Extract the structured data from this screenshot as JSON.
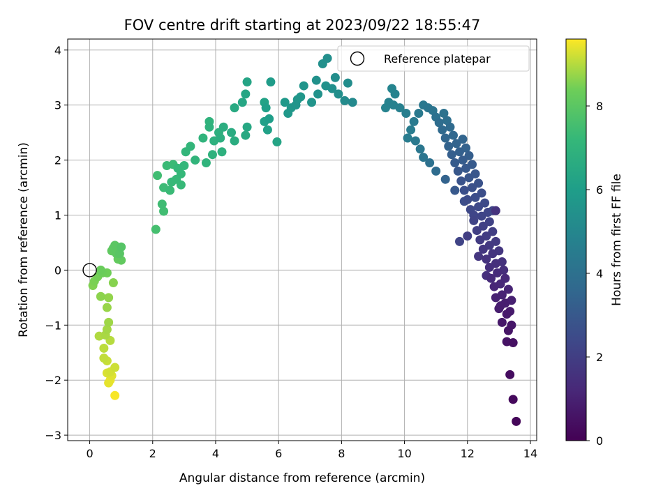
{
  "chart_data": {
    "type": "scatter",
    "title": "FOV centre drift starting at 2023/09/22 18:55:47",
    "xlabel": "Angular distance from reference (arcmin)",
    "ylabel": "Rotation from reference (arcmin)",
    "xlim": [
      -0.7,
      14.2
    ],
    "ylim": [
      -3.1,
      4.2
    ],
    "xticks": [
      "0",
      "2",
      "4",
      "6",
      "8",
      "10",
      "12",
      "14"
    ],
    "yticks": [
      "−3",
      "−2",
      "−1",
      "0",
      "1",
      "2",
      "3",
      "4"
    ],
    "grid": true,
    "legend": {
      "position": "top-right",
      "entries": [
        "Reference platepar"
      ]
    },
    "reference_point": {
      "x": 0,
      "y": 0,
      "label": "Reference platepar"
    },
    "colorbar": {
      "label": "Hours from first FF file",
      "colormap": "viridis",
      "range": [
        0,
        9.6
      ],
      "ticks": [
        "0",
        "2",
        "4",
        "6",
        "8"
      ]
    },
    "series": [
      {
        "color_value": "time_hours",
        "points": [
          {
            "x": 13.55,
            "y": -2.75,
            "t": 0.15
          },
          {
            "x": 13.45,
            "y": -2.35,
            "t": 0.25
          },
          {
            "x": 13.35,
            "y": -1.9,
            "t": 0.35
          },
          {
            "x": 13.45,
            "y": -1.32,
            "t": 0.5
          },
          {
            "x": 13.25,
            "y": -1.3,
            "t": 0.55
          },
          {
            "x": 13.3,
            "y": -1.1,
            "t": 0.6
          },
          {
            "x": 13.4,
            "y": -1.0,
            "t": 0.65
          },
          {
            "x": 13.1,
            "y": -0.95,
            "t": 0.7
          },
          {
            "x": 13.25,
            "y": -0.8,
            "t": 0.75
          },
          {
            "x": 13.35,
            "y": -0.75,
            "t": 0.8
          },
          {
            "x": 13.0,
            "y": -0.7,
            "t": 0.85
          },
          {
            "x": 13.2,
            "y": -0.6,
            "t": 0.9
          },
          {
            "x": 13.4,
            "y": -0.55,
            "t": 0.95
          },
          {
            "x": 12.9,
            "y": -0.5,
            "t": 1.0
          },
          {
            "x": 13.1,
            "y": -0.45,
            "t": 1.05
          },
          {
            "x": 13.3,
            "y": -0.35,
            "t": 1.1
          },
          {
            "x": 12.85,
            "y": -0.3,
            "t": 1.15
          },
          {
            "x": 13.05,
            "y": -0.25,
            "t": 1.2
          },
          {
            "x": 13.2,
            "y": -0.15,
            "t": 1.25
          },
          {
            "x": 12.75,
            "y": -0.15,
            "t": 1.3
          },
          {
            "x": 12.95,
            "y": -0.05,
            "t": 1.35
          },
          {
            "x": 13.15,
            "y": 0.0,
            "t": 1.4
          },
          {
            "x": 12.7,
            "y": 0.05,
            "t": 1.45
          },
          {
            "x": 12.9,
            "y": 0.12,
            "t": 1.5
          },
          {
            "x": 13.1,
            "y": 0.15,
            "t": 1.55
          },
          {
            "x": 12.6,
            "y": 0.2,
            "t": 1.6
          },
          {
            "x": 12.8,
            "y": 0.3,
            "t": 1.65
          },
          {
            "x": 13.0,
            "y": 0.35,
            "t": 1.7
          },
          {
            "x": 12.5,
            "y": 0.38,
            "t": 1.75
          },
          {
            "x": 12.7,
            "y": 0.45,
            "t": 1.8
          },
          {
            "x": 12.9,
            "y": 0.52,
            "t": 1.85
          },
          {
            "x": 12.4,
            "y": 0.55,
            "t": 1.9
          },
          {
            "x": 12.6,
            "y": 0.62,
            "t": 1.95
          },
          {
            "x": 12.8,
            "y": 0.7,
            "t": 2.0
          },
          {
            "x": 12.3,
            "y": 0.72,
            "t": 2.05
          },
          {
            "x": 12.5,
            "y": 0.8,
            "t": 2.1
          },
          {
            "x": 12.7,
            "y": 0.88,
            "t": 2.15
          },
          {
            "x": 12.2,
            "y": 0.9,
            "t": 2.2
          },
          {
            "x": 12.45,
            "y": 0.98,
            "t": 2.25
          },
          {
            "x": 12.65,
            "y": 1.05,
            "t": 2.3
          },
          {
            "x": 12.8,
            "y": 1.08,
            "t": 2.3
          },
          {
            "x": 12.1,
            "y": 1.1,
            "t": 2.35
          },
          {
            "x": 12.35,
            "y": 1.15,
            "t": 2.4
          },
          {
            "x": 12.55,
            "y": 1.22,
            "t": 2.45
          },
          {
            "x": 12.0,
            "y": 1.28,
            "t": 2.5
          },
          {
            "x": 12.25,
            "y": 1.32,
            "t": 2.55
          },
          {
            "x": 12.45,
            "y": 1.4,
            "t": 2.6
          },
          {
            "x": 11.9,
            "y": 1.45,
            "t": 2.65
          },
          {
            "x": 12.15,
            "y": 1.5,
            "t": 2.7
          },
          {
            "x": 12.35,
            "y": 1.58,
            "t": 2.75
          },
          {
            "x": 11.8,
            "y": 1.62,
            "t": 2.8
          },
          {
            "x": 12.05,
            "y": 1.68,
            "t": 2.85
          },
          {
            "x": 12.25,
            "y": 1.75,
            "t": 2.9
          },
          {
            "x": 11.7,
            "y": 1.8,
            "t": 2.95
          },
          {
            "x": 11.95,
            "y": 1.85,
            "t": 3.0
          },
          {
            "x": 12.15,
            "y": 1.92,
            "t": 3.05
          },
          {
            "x": 11.6,
            "y": 1.95,
            "t": 3.1
          },
          {
            "x": 11.85,
            "y": 2.0,
            "t": 3.15
          },
          {
            "x": 12.05,
            "y": 2.08,
            "t": 3.2
          },
          {
            "x": 11.5,
            "y": 2.1,
            "t": 3.25
          },
          {
            "x": 11.75,
            "y": 2.15,
            "t": 3.3
          },
          {
            "x": 11.95,
            "y": 2.22,
            "t": 3.35
          },
          {
            "x": 11.4,
            "y": 2.25,
            "t": 3.4
          },
          {
            "x": 11.65,
            "y": 2.3,
            "t": 3.45
          },
          {
            "x": 11.85,
            "y": 2.38,
            "t": 3.5
          },
          {
            "x": 11.3,
            "y": 2.4,
            "t": 3.55
          },
          {
            "x": 11.55,
            "y": 2.45,
            "t": 3.6
          },
          {
            "x": 11.2,
            "y": 2.55,
            "t": 3.7
          },
          {
            "x": 11.45,
            "y": 2.6,
            "t": 3.75
          },
          {
            "x": 11.1,
            "y": 2.68,
            "t": 3.85
          },
          {
            "x": 11.35,
            "y": 2.72,
            "t": 3.9
          },
          {
            "x": 11.0,
            "y": 2.78,
            "t": 4.0
          },
          {
            "x": 11.25,
            "y": 2.85,
            "t": 4.05
          },
          {
            "x": 10.9,
            "y": 2.9,
            "t": 4.15
          },
          {
            "x": 10.75,
            "y": 2.95,
            "t": 4.25
          },
          {
            "x": 10.6,
            "y": 3.0,
            "t": 4.35
          },
          {
            "x": 10.45,
            "y": 2.85,
            "t": 4.4
          },
          {
            "x": 10.3,
            "y": 2.7,
            "t": 4.45
          },
          {
            "x": 10.2,
            "y": 2.55,
            "t": 4.5
          },
          {
            "x": 10.1,
            "y": 2.4,
            "t": 4.5
          },
          {
            "x": 10.35,
            "y": 2.35,
            "t": 4.4
          },
          {
            "x": 10.5,
            "y": 2.2,
            "t": 4.3
          },
          {
            "x": 10.6,
            "y": 2.05,
            "t": 4.2
          },
          {
            "x": 10.8,
            "y": 1.95,
            "t": 4.0
          },
          {
            "x": 11.0,
            "y": 1.8,
            "t": 3.8
          },
          {
            "x": 11.3,
            "y": 1.65,
            "t": 3.4
          },
          {
            "x": 11.6,
            "y": 1.45,
            "t": 3.0
          },
          {
            "x": 11.9,
            "y": 1.25,
            "t": 2.6
          },
          {
            "x": 12.2,
            "y": 1.0,
            "t": 2.3
          },
          {
            "x": 11.75,
            "y": 0.52,
            "t": 2.2
          },
          {
            "x": 12.0,
            "y": 0.62,
            "t": 2.0
          },
          {
            "x": 12.9,
            "y": 1.08,
            "t": 1.6
          },
          {
            "x": 12.35,
            "y": 0.25,
            "t": 1.7
          },
          {
            "x": 12.6,
            "y": -0.1,
            "t": 1.45
          },
          {
            "x": 13.05,
            "y": -0.65,
            "t": 0.9
          },
          {
            "x": 10.05,
            "y": 2.85,
            "t": 4.6
          },
          {
            "x": 9.85,
            "y": 2.95,
            "t": 4.7
          },
          {
            "x": 9.65,
            "y": 3.0,
            "t": 4.75
          },
          {
            "x": 9.5,
            "y": 3.05,
            "t": 4.8
          },
          {
            "x": 9.7,
            "y": 3.2,
            "t": 4.85
          },
          {
            "x": 9.6,
            "y": 3.3,
            "t": 4.9
          },
          {
            "x": 9.4,
            "y": 2.95,
            "t": 4.85
          },
          {
            "x": 8.35,
            "y": 3.05,
            "t": 5.1
          },
          {
            "x": 8.1,
            "y": 3.08,
            "t": 5.2
          },
          {
            "x": 8.2,
            "y": 3.4,
            "t": 5.25
          },
          {
            "x": 7.8,
            "y": 3.5,
            "t": 5.3
          },
          {
            "x": 7.55,
            "y": 3.85,
            "t": 5.35
          },
          {
            "x": 7.4,
            "y": 3.75,
            "t": 5.4
          },
          {
            "x": 7.5,
            "y": 3.35,
            "t": 5.45
          },
          {
            "x": 7.25,
            "y": 3.2,
            "t": 5.5
          },
          {
            "x": 7.05,
            "y": 3.05,
            "t": 5.55
          },
          {
            "x": 6.8,
            "y": 3.35,
            "t": 5.6
          },
          {
            "x": 6.6,
            "y": 3.1,
            "t": 5.65
          },
          {
            "x": 6.4,
            "y": 2.95,
            "t": 5.7
          },
          {
            "x": 6.3,
            "y": 2.85,
            "t": 5.75
          },
          {
            "x": 7.7,
            "y": 3.3,
            "t": 5.4
          },
          {
            "x": 7.9,
            "y": 3.2,
            "t": 5.35
          },
          {
            "x": 7.2,
            "y": 3.45,
            "t": 5.45
          },
          {
            "x": 6.55,
            "y": 3.0,
            "t": 5.6
          },
          {
            "x": 6.7,
            "y": 3.15,
            "t": 5.7
          },
          {
            "x": 6.2,
            "y": 3.05,
            "t": 5.8
          },
          {
            "x": 5.75,
            "y": 3.42,
            "t": 5.9
          },
          {
            "x": 5.7,
            "y": 2.75,
            "t": 6.0
          },
          {
            "x": 5.6,
            "y": 2.95,
            "t": 6.05
          },
          {
            "x": 5.55,
            "y": 2.7,
            "t": 6.1
          },
          {
            "x": 5.65,
            "y": 2.55,
            "t": 6.15
          },
          {
            "x": 5.55,
            "y": 3.05,
            "t": 6.2
          },
          {
            "x": 5.95,
            "y": 2.33,
            "t": 6.3
          },
          {
            "x": 5.0,
            "y": 3.42,
            "t": 6.3
          },
          {
            "x": 4.95,
            "y": 3.2,
            "t": 6.35
          },
          {
            "x": 4.85,
            "y": 3.05,
            "t": 6.4
          },
          {
            "x": 5.0,
            "y": 2.6,
            "t": 6.45
          },
          {
            "x": 4.95,
            "y": 2.45,
            "t": 6.5
          },
          {
            "x": 4.6,
            "y": 2.95,
            "t": 6.55
          },
          {
            "x": 4.5,
            "y": 2.5,
            "t": 6.6
          },
          {
            "x": 4.6,
            "y": 2.35,
            "t": 6.65
          },
          {
            "x": 4.25,
            "y": 2.6,
            "t": 6.7
          },
          {
            "x": 4.15,
            "y": 2.4,
            "t": 6.75
          },
          {
            "x": 4.1,
            "y": 2.5,
            "t": 6.8
          },
          {
            "x": 4.2,
            "y": 2.15,
            "t": 6.85
          },
          {
            "x": 3.95,
            "y": 2.35,
            "t": 6.85
          },
          {
            "x": 3.9,
            "y": 2.1,
            "t": 6.9
          },
          {
            "x": 3.8,
            "y": 2.6,
            "t": 6.9
          },
          {
            "x": 3.8,
            "y": 2.7,
            "t": 6.95
          },
          {
            "x": 3.7,
            "y": 1.95,
            "t": 7.0
          },
          {
            "x": 3.6,
            "y": 2.4,
            "t": 7.0
          },
          {
            "x": 3.35,
            "y": 2.0,
            "t": 7.05
          },
          {
            "x": 3.2,
            "y": 2.25,
            "t": 7.1
          },
          {
            "x": 3.05,
            "y": 2.15,
            "t": 7.1
          },
          {
            "x": 3.0,
            "y": 1.9,
            "t": 7.15
          },
          {
            "x": 2.9,
            "y": 1.75,
            "t": 7.2
          },
          {
            "x": 2.8,
            "y": 1.85,
            "t": 7.2
          },
          {
            "x": 2.75,
            "y": 1.65,
            "t": 7.25
          },
          {
            "x": 2.6,
            "y": 1.6,
            "t": 7.25
          },
          {
            "x": 2.55,
            "y": 1.45,
            "t": 7.3
          },
          {
            "x": 2.45,
            "y": 1.9,
            "t": 7.3
          },
          {
            "x": 2.35,
            "y": 1.5,
            "t": 7.35
          },
          {
            "x": 2.3,
            "y": 1.2,
            "t": 7.4
          },
          {
            "x": 2.35,
            "y": 1.07,
            "t": 7.45
          },
          {
            "x": 2.15,
            "y": 1.72,
            "t": 7.45
          },
          {
            "x": 2.1,
            "y": 0.74,
            "t": 7.55
          },
          {
            "x": 2.65,
            "y": 1.92,
            "t": 7.3
          },
          {
            "x": 2.9,
            "y": 1.55,
            "t": 7.25
          },
          {
            "x": 1.0,
            "y": 0.42,
            "t": 7.9
          },
          {
            "x": 0.95,
            "y": 0.3,
            "t": 7.95
          },
          {
            "x": 0.8,
            "y": 0.45,
            "t": 8.0
          },
          {
            "x": 0.75,
            "y": 0.4,
            "t": 8.05
          },
          {
            "x": 0.85,
            "y": 0.3,
            "t": 8.05
          },
          {
            "x": 0.7,
            "y": 0.35,
            "t": 8.1
          },
          {
            "x": 1.0,
            "y": 0.18,
            "t": 8.15
          },
          {
            "x": 0.9,
            "y": 0.2,
            "t": 8.2
          },
          {
            "x": 0.35,
            "y": 0.0,
            "t": 8.3
          },
          {
            "x": 0.4,
            "y": -0.05,
            "t": 8.35
          },
          {
            "x": 0.55,
            "y": -0.05,
            "t": 8.4
          },
          {
            "x": 0.25,
            "y": -0.12,
            "t": 8.45
          },
          {
            "x": 0.15,
            "y": -0.2,
            "t": 8.5
          },
          {
            "x": 0.1,
            "y": -0.28,
            "t": 8.55
          },
          {
            "x": 0.75,
            "y": -0.23,
            "t": 8.6
          },
          {
            "x": 0.35,
            "y": -0.48,
            "t": 8.65
          },
          {
            "x": 0.6,
            "y": -0.5,
            "t": 8.7
          },
          {
            "x": 0.55,
            "y": -0.68,
            "t": 8.75
          },
          {
            "x": 0.6,
            "y": -0.95,
            "t": 8.8
          },
          {
            "x": 0.55,
            "y": -1.08,
            "t": 8.85
          },
          {
            "x": 0.5,
            "y": -1.18,
            "t": 8.9
          },
          {
            "x": 0.3,
            "y": -1.2,
            "t": 8.95
          },
          {
            "x": 0.65,
            "y": -1.28,
            "t": 9.0
          },
          {
            "x": 0.45,
            "y": -1.42,
            "t": 9.05
          },
          {
            "x": 0.45,
            "y": -1.6,
            "t": 9.1
          },
          {
            "x": 0.55,
            "y": -1.65,
            "t": 9.15
          },
          {
            "x": 0.8,
            "y": -1.77,
            "t": 9.2
          },
          {
            "x": 0.65,
            "y": -1.85,
            "t": 9.25
          },
          {
            "x": 0.55,
            "y": -1.87,
            "t": 9.3
          },
          {
            "x": 0.7,
            "y": -1.92,
            "t": 9.35
          },
          {
            "x": 0.6,
            "y": -2.05,
            "t": 9.4
          },
          {
            "x": 0.65,
            "y": -2.0,
            "t": 9.45
          },
          {
            "x": 0.8,
            "y": -2.28,
            "t": 9.55
          }
        ]
      }
    ]
  }
}
